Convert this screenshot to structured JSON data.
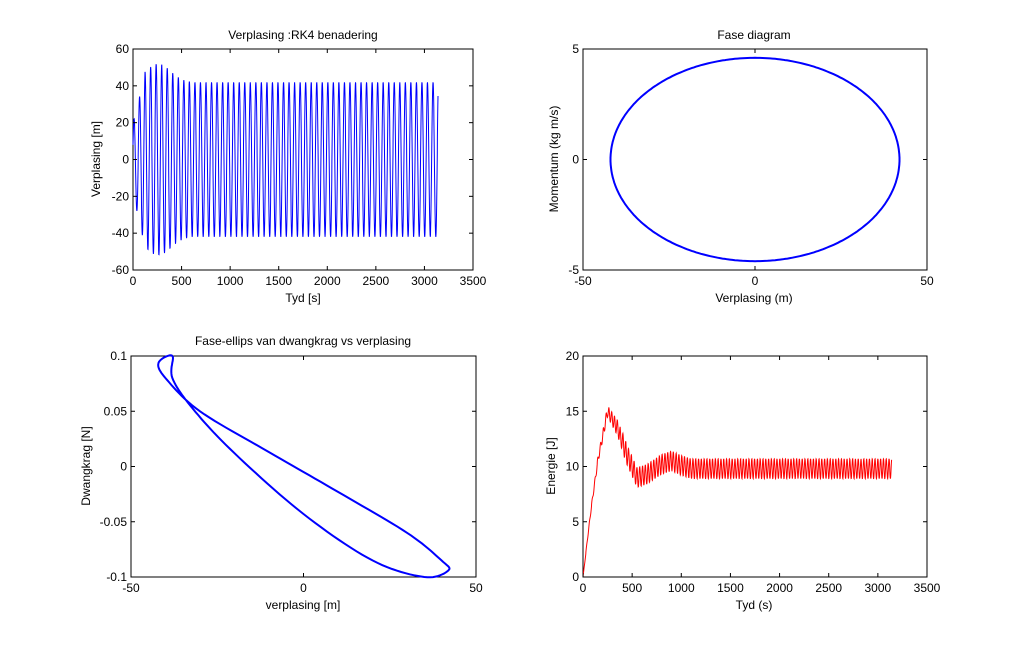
{
  "chart_data": [
    {
      "type": "line",
      "title": "Verplasing :RK4 benadering",
      "xlabel": "Tyd [s]",
      "ylabel": "Verplasing [m]",
      "xlim": [
        0,
        3500
      ],
      "ylim": [
        -60,
        60
      ],
      "xticks": [
        0,
        500,
        1000,
        1500,
        2000,
        2500,
        3000,
        3500
      ],
      "yticks": [
        -60,
        -40,
        -20,
        0,
        20,
        40,
        60
      ],
      "grid": false,
      "series": [
        {
          "color": "#0000ff",
          "signal": {
            "x_start": 0,
            "x_end": 3140,
            "period": 57,
            "steady_amplitude": 42,
            "transient_peak": 52,
            "transient_peak_at": 260,
            "initial_value": 8
          }
        }
      ]
    },
    {
      "type": "line",
      "title": "Fase diagram",
      "xlabel": "Verplasing (m)",
      "ylabel": "Momentum (kg m/s)",
      "xlim": [
        -50,
        50
      ],
      "ylim": [
        -5,
        5
      ],
      "xticks": [
        -50,
        0,
        50
      ],
      "yticks": [
        -5,
        0,
        5
      ],
      "grid": false,
      "series": [
        {
          "color": "#0000ff",
          "ellipse": {
            "cx": 0,
            "cy": 0,
            "rx": 42,
            "ry": 4.6,
            "tilt": 0
          }
        }
      ]
    },
    {
      "type": "line",
      "title": "Fase-ellips van dwangkrag vs verplasing",
      "xlabel": "verplasing [m]",
      "ylabel": "Dwangkrag [N]",
      "xlim": [
        -50,
        50
      ],
      "ylim": [
        -0.1,
        0.1
      ],
      "xticks": [
        -50,
        0,
        50
      ],
      "yticks": [
        -0.1,
        -0.05,
        0,
        0.05,
        0.1
      ],
      "ytick_labels": [
        "-0.1",
        "-0.05",
        "0",
        "0.05",
        "0.1"
      ],
      "grid": false,
      "series": [
        {
          "color": "#0000ff",
          "points": [
            [
              -38,
              0.1
            ],
            [
              -42,
              0.094
            ],
            [
              -40,
              0.08
            ],
            [
              -30,
              0.05
            ],
            [
              -10,
              0.013
            ],
            [
              10,
              -0.023
            ],
            [
              30,
              -0.06
            ],
            [
              40,
              -0.085
            ],
            [
              42,
              -0.094
            ],
            [
              35,
              -0.1
            ],
            [
              20,
              -0.085
            ],
            [
              0,
              -0.043
            ],
            [
              -20,
              0.012
            ],
            [
              -32,
              0.052
            ],
            [
              -38,
              0.08
            ],
            [
              -38,
              0.1
            ]
          ]
        }
      ]
    },
    {
      "type": "line",
      "title": "",
      "xlabel": "Tyd (s)",
      "ylabel": "Energie [J]",
      "xlim": [
        0,
        3500
      ],
      "ylim": [
        0,
        20
      ],
      "xticks": [
        0,
        500,
        1000,
        1500,
        2000,
        2500,
        3000,
        3500
      ],
      "yticks": [
        0,
        5,
        10,
        15,
        20
      ],
      "grid": false,
      "series": [
        {
          "color": "#ff0000",
          "signal": {
            "x_start": 0,
            "x_end": 3140,
            "period": 28.5,
            "mean": 9.8,
            "steady_ripple": 0.9,
            "envelope_points": [
              [
                0,
                0
              ],
              [
                80,
                6
              ],
              [
                150,
                10.5
              ],
              [
                250,
                15
              ],
              [
                350,
                13.5
              ],
              [
                450,
                11
              ],
              [
                550,
                9
              ],
              [
                650,
                9.3
              ],
              [
                800,
                10.2
              ],
              [
                900,
                10.5
              ],
              [
                1000,
                10.1
              ],
              [
                1100,
                9.8
              ],
              [
                3140,
                9.8
              ]
            ]
          }
        }
      ]
    }
  ]
}
